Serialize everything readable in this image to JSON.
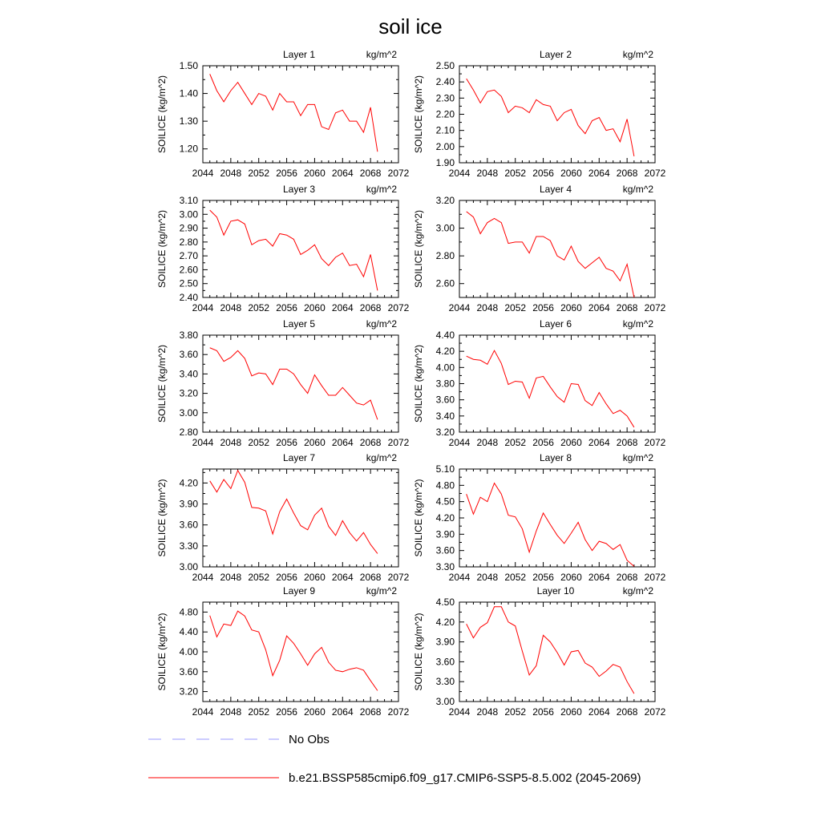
{
  "chart_data": {
    "type": "line",
    "title": "soil ice",
    "units": "kg/m^2",
    "ylabel": "SOILICE  (kg/m^2)",
    "x": [
      2045,
      2046,
      2047,
      2048,
      2049,
      2050,
      2051,
      2052,
      2053,
      2054,
      2055,
      2056,
      2057,
      2058,
      2059,
      2060,
      2061,
      2062,
      2063,
      2064,
      2065,
      2066,
      2067,
      2068,
      2069
    ],
    "xlim": [
      2044,
      2072
    ],
    "xticks": [
      "2044",
      "2048",
      "2052",
      "2056",
      "2060",
      "2064",
      "2068",
      "2072"
    ],
    "series_color": "#ff0000",
    "obs_color": "#9999ff",
    "legend": [
      {
        "label": "No Obs",
        "style": "dashed"
      },
      {
        "label": "b.e21.BSSP585cmip6.f09_g17.CMIP6-SSP5-8.5.002 (2045-2069)",
        "style": "solid"
      }
    ],
    "panels": [
      {
        "title": "Layer 1",
        "ylim": [
          1.15,
          1.5
        ],
        "yticks": [
          "1.20",
          "1.30",
          "1.40",
          "1.50"
        ],
        "values": [
          1.47,
          1.41,
          1.37,
          1.41,
          1.44,
          1.4,
          1.36,
          1.4,
          1.39,
          1.34,
          1.4,
          1.37,
          1.37,
          1.32,
          1.36,
          1.36,
          1.28,
          1.27,
          1.33,
          1.34,
          1.3,
          1.3,
          1.26,
          1.35,
          1.19
        ]
      },
      {
        "title": "Layer 2",
        "ylim": [
          1.9,
          2.5
        ],
        "yticks": [
          "1.90",
          "2.00",
          "2.10",
          "2.20",
          "2.30",
          "2.40",
          "2.50"
        ],
        "values": [
          2.42,
          2.35,
          2.27,
          2.34,
          2.35,
          2.31,
          2.21,
          2.25,
          2.24,
          2.21,
          2.29,
          2.26,
          2.25,
          2.16,
          2.21,
          2.23,
          2.13,
          2.08,
          2.16,
          2.18,
          2.1,
          2.11,
          2.03,
          2.17,
          1.94
        ]
      },
      {
        "title": "Layer 3",
        "ylim": [
          2.4,
          3.1
        ],
        "yticks": [
          "2.40",
          "2.50",
          "2.60",
          "2.70",
          "2.80",
          "2.90",
          "3.00",
          "3.10"
        ],
        "values": [
          3.03,
          2.98,
          2.85,
          2.95,
          2.96,
          2.93,
          2.78,
          2.81,
          2.82,
          2.77,
          2.86,
          2.85,
          2.82,
          2.71,
          2.74,
          2.78,
          2.68,
          2.63,
          2.69,
          2.72,
          2.63,
          2.64,
          2.55,
          2.71,
          2.45
        ]
      },
      {
        "title": "Layer 4",
        "ylim": [
          2.5,
          3.2
        ],
        "yticks": [
          "2.60",
          "2.80",
          "3.00",
          "3.20"
        ],
        "values": [
          3.12,
          3.08,
          2.96,
          3.04,
          3.07,
          3.04,
          2.89,
          2.9,
          2.9,
          2.82,
          2.94,
          2.94,
          2.91,
          2.8,
          2.77,
          2.87,
          2.76,
          2.71,
          2.75,
          2.79,
          2.71,
          2.69,
          2.62,
          2.74,
          2.5
        ]
      },
      {
        "title": "Layer 5",
        "ylim": [
          2.8,
          3.8
        ],
        "yticks": [
          "2.80",
          "3.00",
          "3.20",
          "3.40",
          "3.60",
          "3.80"
        ],
        "values": [
          3.67,
          3.64,
          3.53,
          3.57,
          3.64,
          3.56,
          3.38,
          3.41,
          3.4,
          3.29,
          3.45,
          3.45,
          3.4,
          3.29,
          3.2,
          3.39,
          3.28,
          3.18,
          3.18,
          3.26,
          3.18,
          3.1,
          3.08,
          3.13,
          2.93
        ]
      },
      {
        "title": "Layer 6",
        "ylim": [
          3.2,
          4.4
        ],
        "yticks": [
          "3.20",
          "3.40",
          "3.60",
          "3.80",
          "4.00",
          "4.20",
          "4.40"
        ],
        "values": [
          4.14,
          4.1,
          4.09,
          4.04,
          4.21,
          4.05,
          3.79,
          3.83,
          3.82,
          3.62,
          3.87,
          3.89,
          3.76,
          3.64,
          3.57,
          3.8,
          3.79,
          3.59,
          3.53,
          3.69,
          3.55,
          3.43,
          3.47,
          3.4,
          3.26
        ]
      },
      {
        "title": "Layer 7",
        "ylim": [
          3.0,
          4.4
        ],
        "yticks": [
          "3.00",
          "3.30",
          "3.60",
          "3.90",
          "4.20"
        ],
        "values": [
          4.23,
          4.07,
          4.25,
          4.12,
          4.38,
          4.21,
          3.85,
          3.84,
          3.8,
          3.47,
          3.79,
          3.97,
          3.77,
          3.59,
          3.53,
          3.74,
          3.84,
          3.58,
          3.45,
          3.66,
          3.49,
          3.37,
          3.49,
          3.32,
          3.19
        ]
      },
      {
        "title": "Layer 8",
        "ylim": [
          3.3,
          5.1
        ],
        "yticks": [
          "3.30",
          "3.60",
          "3.90",
          "4.20",
          "4.50",
          "4.80",
          "5.10"
        ],
        "values": [
          4.64,
          4.27,
          4.58,
          4.5,
          4.84,
          4.64,
          4.25,
          4.22,
          4.0,
          3.57,
          3.96,
          4.29,
          4.08,
          3.88,
          3.73,
          3.92,
          4.12,
          3.8,
          3.6,
          3.77,
          3.73,
          3.62,
          3.71,
          3.42,
          3.31
        ]
      },
      {
        "title": "Layer 9",
        "ylim": [
          3.0,
          5.0
        ],
        "yticks": [
          "3.20",
          "3.60",
          "4.00",
          "4.40",
          "4.80"
        ],
        "values": [
          4.73,
          4.3,
          4.56,
          4.53,
          4.82,
          4.72,
          4.44,
          4.4,
          4.04,
          3.52,
          3.83,
          4.32,
          4.17,
          3.96,
          3.73,
          3.96,
          4.09,
          3.79,
          3.63,
          3.6,
          3.65,
          3.68,
          3.63,
          3.42,
          3.22
        ]
      },
      {
        "title": "Layer 10",
        "ylim": [
          3.0,
          4.5
        ],
        "yticks": [
          "3.00",
          "3.30",
          "3.60",
          "3.90",
          "4.20",
          "4.50"
        ],
        "values": [
          4.17,
          3.96,
          4.12,
          4.19,
          4.43,
          4.43,
          4.2,
          4.14,
          3.76,
          3.4,
          3.54,
          4.0,
          3.9,
          3.74,
          3.55,
          3.75,
          3.77,
          3.58,
          3.52,
          3.38,
          3.46,
          3.56,
          3.52,
          3.3,
          3.12
        ]
      }
    ]
  }
}
